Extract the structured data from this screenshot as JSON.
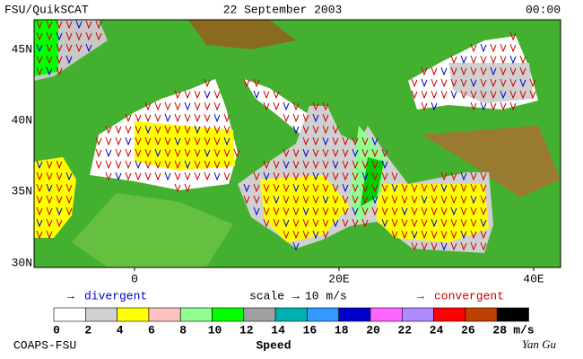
{
  "header": {
    "left": "FSU/QuikSCAT",
    "center": "22 September 2003",
    "right": "00:00"
  },
  "map": {
    "lat_labels": [
      "45N",
      "40N",
      "35N",
      "30N"
    ],
    "lon_labels": [
      "0",
      "20E",
      "40E"
    ]
  },
  "legend": {
    "divergent": "divergent",
    "scale": "scale",
    "scale_value": "10 m/s",
    "convergent": "convergent",
    "divergent_color": "#0000cc",
    "convergent_color": "#cc0000"
  },
  "colorbar": {
    "ticks": [
      0,
      2,
      4,
      6,
      8,
      10,
      12,
      14,
      16,
      18,
      20,
      22,
      24,
      26,
      28
    ],
    "unit": "m/s",
    "title": "Speed",
    "colors": [
      "#ffffff",
      "#d0d0d0",
      "#ffff00",
      "#ffc0c0",
      "#90ff90",
      "#00ff00",
      "#a0a0a0",
      "#00b0b0",
      "#3399ff",
      "#0000cc",
      "#ff66ff",
      "#b088ff",
      "#ff0000",
      "#c04000",
      "#000000"
    ]
  },
  "footer": {
    "left": "COAPS-FSU",
    "signature": "Yan Gu"
  }
}
